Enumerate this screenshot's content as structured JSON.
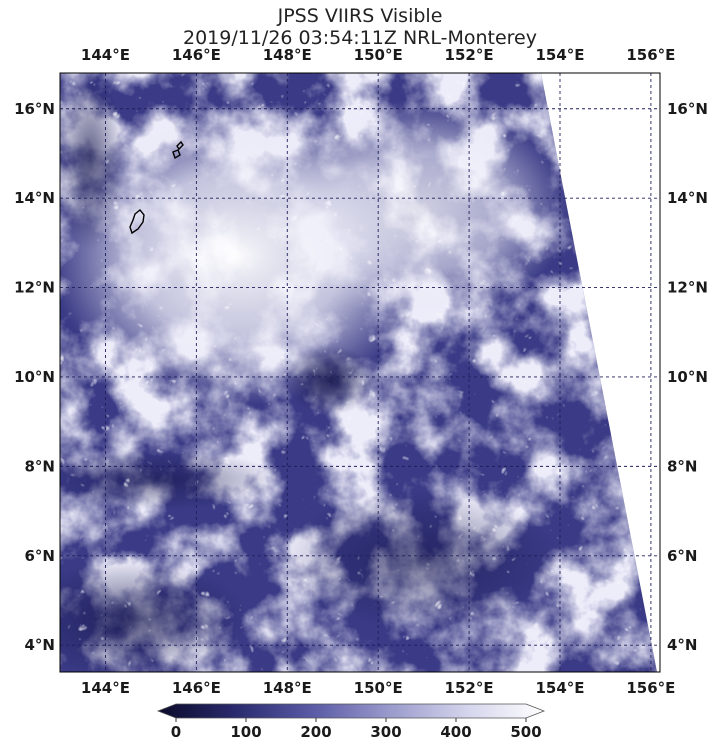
{
  "title_line1": "JPSS VIIRS Visible",
  "title_line2": "2019/11/26 03:54:11Z NRL-Monterey",
  "longitude_labels": [
    "144°E",
    "146°E",
    "148°E",
    "150°E",
    "152°E",
    "154°E",
    "156°E"
  ],
  "longitude_values": [
    144,
    146,
    148,
    150,
    152,
    154,
    156
  ],
  "latitude_labels": [
    "16°N",
    "14°N",
    "12°N",
    "10°N",
    "8°N",
    "6°N",
    "4°N"
  ],
  "latitude_values": [
    16,
    14,
    12,
    10,
    8,
    6,
    4
  ],
  "extent": {
    "lon_min": 143.0,
    "lon_max": 156.2,
    "lat_min": 3.4,
    "lat_max": 16.8
  },
  "swath_edge": {
    "top_lon": 154.0,
    "bottom_lon": 156.2
  },
  "colorbar": {
    "min": 0,
    "max": 500,
    "tick_labels": [
      "0",
      "100",
      "200",
      "300",
      "400",
      "500"
    ],
    "tick_values": [
      0,
      100,
      200,
      300,
      400,
      500
    ],
    "colors": [
      "#0a0a2a",
      "#2a2a6e",
      "#5a5aa6",
      "#9a9acc",
      "#d4d4ec",
      "#ffffff"
    ]
  },
  "colors": {
    "gridline": "#1f1f5a",
    "island_outline": "#000000"
  }
}
